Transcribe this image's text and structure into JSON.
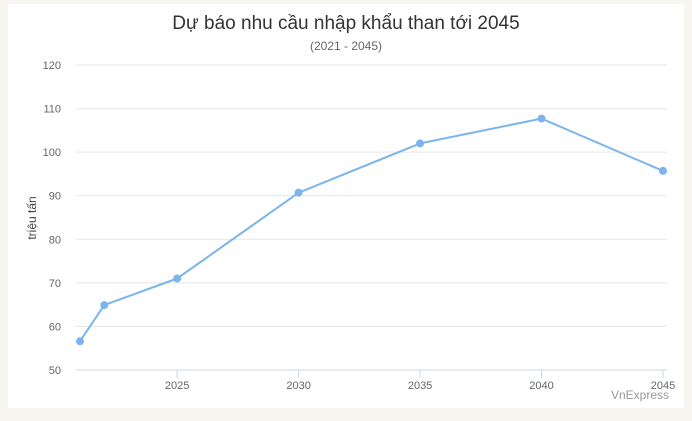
{
  "chart_data": {
    "type": "line",
    "title": "Dự báo nhu cầu nhập khẩu than tới 2045",
    "subtitle": "(2021 - 2045)",
    "xlabel": "",
    "ylabel": "triệu tấn",
    "ylim": [
      50,
      120
    ],
    "yticks": [
      50,
      60,
      70,
      80,
      90,
      100,
      110,
      120
    ],
    "xlim": [
      2021,
      2045
    ],
    "xticks": [
      2025,
      2030,
      2035,
      2040,
      2045
    ],
    "grid": true,
    "series": [
      {
        "x": [
          2021,
          2022,
          2025,
          2030,
          2035,
          2040,
          2045
        ],
        "values": [
          56.6,
          64.9,
          71.0,
          90.7,
          102.0,
          107.7,
          95.7
        ]
      }
    ],
    "color": "#7cb5ec",
    "credit": "VnExpress"
  }
}
